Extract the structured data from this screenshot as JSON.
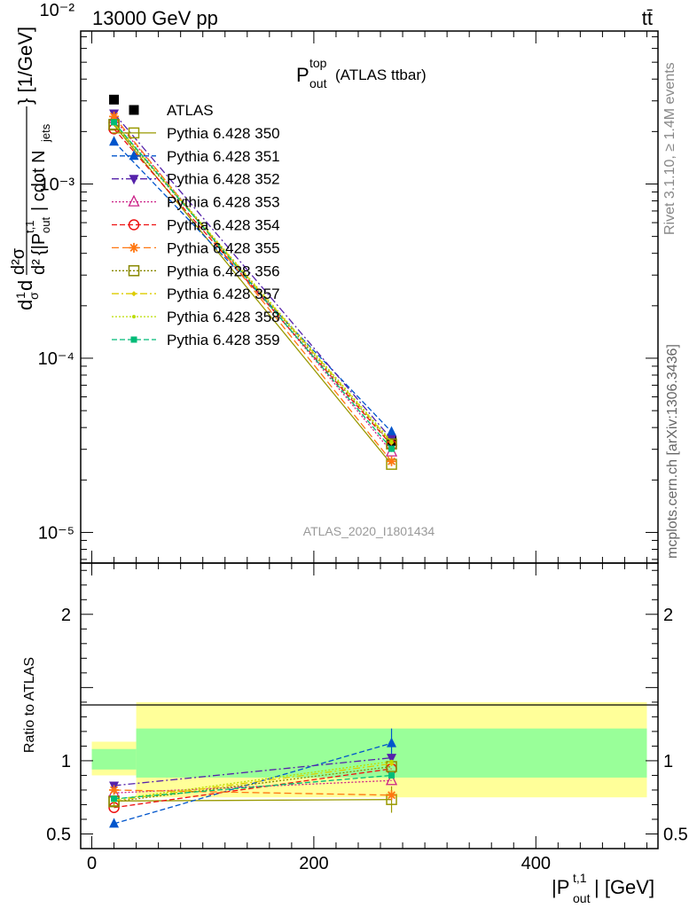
{
  "header": {
    "energy": "13000 GeV pp",
    "process": "tt̄"
  },
  "side_labels": {
    "rivet": "Rivet 3.1.10, ≥ 1.4M events",
    "mcplots": "mcplots.cern.ch [arXiv:1306.3436]"
  },
  "analysis_id": "ATLAS_2020_I1801434",
  "colors": {
    "band_outer": "#ffff99",
    "band_inner": "#99ff99"
  },
  "chart_data": [
    {
      "type": "scatter",
      "panel": "main",
      "title": "P_out^top (ATLAS ttbar)",
      "title_parts": {
        "base": "P",
        "sup": "top",
        "sub": "out",
        "rest": "(ATLAS ttbar)"
      },
      "ylabel": "d(1/σ) dσ / d²{|P_out^t,1| cdot N_jets} [1/GeV]",
      "ylabel_parts": {
        "unit": "} [1/GeV]",
        "dsigma": "d²σ",
        "pout": "{|P",
        "sup": "t,1",
        "sub": "out",
        "cdot": "| cdot N",
        "jets": "jets"
      },
      "yscale": "log",
      "ylim": [
        6.67e-06,
        0.00755
      ],
      "xlim": [
        -10,
        510
      ],
      "ytick_labels": [
        "10⁻⁵",
        "10⁻⁴",
        "10⁻³",
        "10⁻²"
      ],
      "ytick_values": [
        1e-05,
        0.0001,
        0.001,
        0.01
      ],
      "legend_position": "top-left",
      "x": [
        20,
        270
      ],
      "series": [
        {
          "name": "ATLAS",
          "color": "#000000",
          "marker": "square-filled",
          "dash": "none",
          "values": [
            0.00305,
            3.35e-05
          ],
          "errors": [
            0.00012,
            3.5e-06
          ]
        },
        {
          "name": "Pythia 6.428 350",
          "color": "#999900",
          "marker": "square-open",
          "dash": "solid",
          "values": [
            0.00218,
            2.46e-05
          ]
        },
        {
          "name": "Pythia 6.428 351",
          "color": "#0055cc",
          "marker": "triangle-up-filled",
          "dash": "6,3",
          "values": [
            0.00175,
            3.78e-05
          ]
        },
        {
          "name": "Pythia 6.428 352",
          "color": "#5522aa",
          "marker": "triangle-down-filled",
          "dash": "8,3,2,3",
          "values": [
            0.00254,
            3.43e-05
          ]
        },
        {
          "name": "Pythia 6.428 353",
          "color": "#cc2288",
          "marker": "triangle-up-open",
          "dash": "2,2",
          "values": [
            0.00237,
            2.9e-05
          ]
        },
        {
          "name": "Pythia 6.428 354",
          "color": "#ee1111",
          "marker": "circle-open",
          "dash": "6,3",
          "values": [
            0.00207,
            3.17e-05
          ]
        },
        {
          "name": "Pythia 6.428 355",
          "color": "#ff7711",
          "marker": "star",
          "dash": "8,4",
          "values": [
            0.00244,
            2.56e-05
          ]
        },
        {
          "name": "Pythia 6.428 356",
          "color": "#888800",
          "marker": "square-open",
          "dash": "2,2",
          "values": [
            0.0022,
            3.22e-05
          ]
        },
        {
          "name": "Pythia 6.428 357",
          "color": "#ddcc00",
          "marker": "diamond",
          "dash": "8,3,2,3",
          "values": [
            0.00222,
            3.28e-05
          ]
        },
        {
          "name": "Pythia 6.428 358",
          "color": "#bbdd00",
          "marker": "dot",
          "dash": "2,2",
          "values": [
            0.00224,
            3.33e-05
          ]
        },
        {
          "name": "Pythia 6.428 359",
          "color": "#00bb77",
          "marker": "square-filled-small",
          "dash": "6,3",
          "values": [
            0.00226,
            3.02e-05
          ]
        }
      ]
    },
    {
      "type": "scatter",
      "panel": "ratio",
      "ylabel": "Ratio to ATLAS",
      "xlabel": "|P_out^t,1| [GeV]",
      "xlabel_parts": {
        "base": "|P",
        "sup": "t,1",
        "sub": "out",
        "rest": "| [GeV]"
      },
      "ylim": [
        0.4,
        2.35
      ],
      "xlim": [
        -10,
        510
      ],
      "xtick_labels": [
        "0",
        "200",
        "400"
      ],
      "xtick_values": [
        0,
        200,
        400
      ],
      "ytick_labels": [
        "0.5",
        "1",
        "2"
      ],
      "ytick_values": [
        0.5,
        1,
        2
      ],
      "bands": [
        {
          "x": [
            0,
            40
          ],
          "outer": [
            0.9,
            1.13
          ],
          "inner": [
            0.94,
            1.08
          ]
        },
        {
          "x": [
            40,
            500
          ],
          "outer": [
            0.75,
            1.4
          ],
          "inner": [
            0.885,
            1.22
          ]
        }
      ],
      "x": [
        20,
        270
      ],
      "series": [
        {
          "name": "Pythia 6.428 350",
          "values": [
            0.725,
            0.735
          ],
          "errors": [
            0.03,
            0.09
          ]
        },
        {
          "name": "Pythia 6.428 351",
          "values": [
            0.57,
            1.12
          ],
          "errors": [
            0.025,
            0.1
          ]
        },
        {
          "name": "Pythia 6.428 352",
          "values": [
            0.83,
            1.02
          ]
        },
        {
          "name": "Pythia 6.428 353",
          "values": [
            0.78,
            0.865
          ]
        },
        {
          "name": "Pythia 6.428 354",
          "values": [
            0.68,
            0.945
          ]
        },
        {
          "name": "Pythia 6.428 355",
          "values": [
            0.8,
            0.765
          ]
        },
        {
          "name": "Pythia 6.428 356",
          "values": [
            0.72,
            0.96
          ]
        },
        {
          "name": "Pythia 6.428 357",
          "values": [
            0.727,
            0.98
          ]
        },
        {
          "name": "Pythia 6.428 358",
          "values": [
            0.735,
            0.995
          ]
        },
        {
          "name": "Pythia 6.428 359",
          "values": [
            0.74,
            0.9
          ]
        }
      ]
    }
  ]
}
